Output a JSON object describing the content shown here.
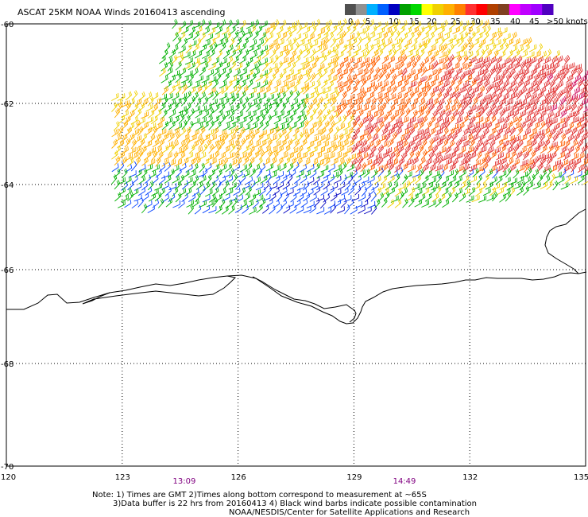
{
  "title": "ASCAT 25KM NOAA Winds 20160413 ascending",
  "legend": {
    "units": "knots",
    "labels": [
      "0",
      "5",
      "10",
      "15",
      "20",
      "25",
      "30",
      "35",
      "40",
      "45",
      ">50 knots"
    ],
    "colors": [
      "#505050",
      "#909090",
      "#00b0ff",
      "#0060ff",
      "#0000c0",
      "#00a000",
      "#00d800",
      "#ffff00",
      "#f0d000",
      "#ffb000",
      "#ff8000",
      "#ff3030",
      "#ff0000",
      "#b04000",
      "#804020",
      "#ff00ff",
      "#c000ff",
      "#a000ff",
      "#5000c0"
    ]
  },
  "axes": {
    "x_ticks": [
      "120",
      "123",
      "126",
      "129",
      "132",
      "135"
    ],
    "y_ticks": [
      "-60",
      "-62",
      "-64",
      "-66",
      "-68",
      "-70"
    ]
  },
  "times": [
    {
      "label": "13:09",
      "lon": 124.6
    },
    {
      "label": "14:49",
      "lon": 130.3
    }
  ],
  "notes": [
    "Note: 1) Times are GMT 2)Times along bottom correspond to measurement at ~65S",
    "3)Data buffer is 22 hrs from 20160413 4) Black wind barbs indicate possible contamination",
    "NOAA/NESDIS/Center for Satellite Applications and Research"
  ],
  "wind_field": {
    "swath_lon_range": [
      122.8,
      135.0
    ],
    "swath_lat_range": [
      -64.8,
      -60.0
    ],
    "dominant_speed_ranges_knots": {
      "north_edge": "20-25",
      "northwest": "15-20",
      "southeast_core": "35-40",
      "south_edge": "10-20"
    }
  }
}
